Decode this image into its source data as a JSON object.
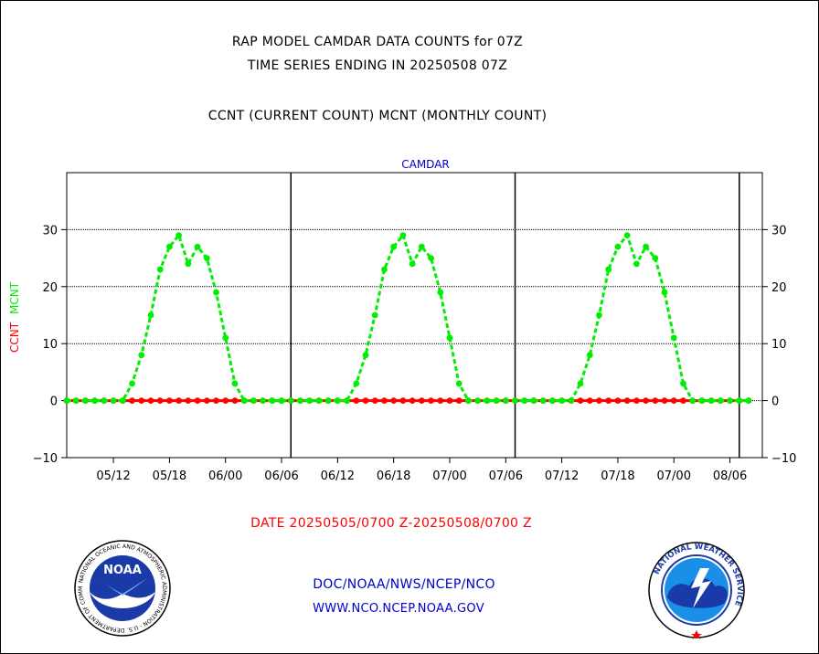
{
  "header": {
    "title_line1": "RAP MODEL CAMDAR DATA COUNTS for 07Z",
    "title_line2": "TIME SERIES ENDING IN 20250508 07Z",
    "subtitle": "CCNT (CURRENT COUNT) MCNT (MONTHLY COUNT)"
  },
  "footer": {
    "date_range": "DATE 20250505/0700 Z-20250508/0700 Z",
    "org_line": "DOC/NOAA/NWS/NCEP/NCO",
    "url_line": "WWW.NCO.NCEP.NOAA.GOV"
  },
  "logos": {
    "noaa": {
      "text": "NOAA",
      "ring_text": "NATIONAL OCEANIC AND ATMOSPHERIC ADMINISTRATION · U.S. DEPARTMENT OF COMMERCE"
    },
    "nws": {
      "ring_text": "NATIONAL WEATHER SERVICE"
    }
  },
  "colors": {
    "ccnt": "#ff0000",
    "mcnt": "#00ee00",
    "panel_label": "#0000cc",
    "date_text": "#ff0000",
    "footer_text": "#0000cc"
  },
  "chart_data": {
    "type": "line",
    "title": "CAMDAR",
    "ylabel_parts": [
      {
        "text": "CCNT",
        "color": "#ff0000"
      },
      {
        "text": "MCNT",
        "color": "#00ee00"
      }
    ],
    "ylim": [
      -10,
      40
    ],
    "yticks": [
      30,
      20,
      10,
      0,
      -10
    ],
    "grid_y": [
      30,
      20,
      10,
      0
    ],
    "xlim": [
      0,
      73
    ],
    "day_boundaries": [
      24,
      48,
      72
    ],
    "x_ticks": [
      {
        "label": "05/12",
        "x": 5
      },
      {
        "label": "05/18",
        "x": 11
      },
      {
        "label": "06/00",
        "x": 17
      },
      {
        "label": "06/06",
        "x": 23
      },
      {
        "label": "06/12",
        "x": 29
      },
      {
        "label": "06/18",
        "x": 35
      },
      {
        "label": "07/00",
        "x": 41
      },
      {
        "label": "07/06",
        "x": 47
      },
      {
        "label": "07/12",
        "x": 53
      },
      {
        "label": "07/18",
        "x": 59
      },
      {
        "label": "07/00b",
        "x": 65
      },
      {
        "label": "08/06",
        "x": 71
      }
    ],
    "series": [
      {
        "name": "CCNT",
        "color": "#ff0000",
        "style": "solid",
        "x": [
          0,
          1,
          2,
          3,
          4,
          5,
          6,
          7,
          8,
          9,
          10,
          11,
          12,
          13,
          14,
          15,
          16,
          17,
          18,
          19,
          20,
          21,
          22,
          23,
          24,
          25,
          26,
          27,
          28,
          29,
          30,
          31,
          32,
          33,
          34,
          35,
          36,
          37,
          38,
          39,
          40,
          41,
          42,
          43,
          44,
          45,
          46,
          47,
          48,
          49,
          50,
          51,
          52,
          53,
          54,
          55,
          56,
          57,
          58,
          59,
          60,
          61,
          62,
          63,
          64,
          65,
          66,
          67,
          68,
          69,
          70,
          71,
          72,
          73
        ],
        "values": [
          0,
          0,
          0,
          0,
          0,
          0,
          0,
          0,
          0,
          0,
          0,
          0,
          0,
          0,
          0,
          0,
          0,
          0,
          0,
          0,
          0,
          0,
          0,
          0,
          0,
          0,
          0,
          0,
          0,
          0,
          0,
          0,
          0,
          0,
          0,
          0,
          0,
          0,
          0,
          0,
          0,
          0,
          0,
          0,
          0,
          0,
          0,
          0,
          0,
          0,
          0,
          0,
          0,
          0,
          0,
          0,
          0,
          0,
          0,
          0,
          0,
          0,
          0,
          0,
          0,
          0,
          0,
          0,
          0,
          0,
          0,
          0,
          0,
          0
        ]
      },
      {
        "name": "MCNT",
        "color": "#00ee00",
        "style": "dashed",
        "x": [
          0,
          1,
          2,
          3,
          4,
          5,
          6,
          7,
          8,
          9,
          10,
          11,
          12,
          13,
          14,
          15,
          16,
          17,
          18,
          19,
          20,
          21,
          22,
          23,
          24,
          25,
          26,
          27,
          28,
          29,
          30,
          31,
          32,
          33,
          34,
          35,
          36,
          37,
          38,
          39,
          40,
          41,
          42,
          43,
          44,
          45,
          46,
          47,
          48,
          49,
          50,
          51,
          52,
          53,
          54,
          55,
          56,
          57,
          58,
          59,
          60,
          61,
          62,
          63,
          64,
          65,
          66,
          67,
          68,
          69,
          70,
          71,
          72,
          73
        ],
        "values": [
          0,
          0,
          0,
          0,
          0,
          0,
          0,
          3,
          8,
          15,
          23,
          27,
          29,
          24,
          27,
          25,
          19,
          11,
          3,
          0,
          0,
          0,
          0,
          0,
          0,
          0,
          0,
          0,
          0,
          0,
          0,
          3,
          8,
          15,
          23,
          27,
          29,
          24,
          27,
          25,
          19,
          11,
          3,
          0,
          0,
          0,
          0,
          0,
          0,
          0,
          0,
          0,
          0,
          0,
          0,
          3,
          8,
          15,
          23,
          27,
          29,
          24,
          27,
          25,
          19,
          11,
          3,
          0,
          0,
          0,
          0,
          0,
          0,
          0
        ]
      }
    ]
  }
}
